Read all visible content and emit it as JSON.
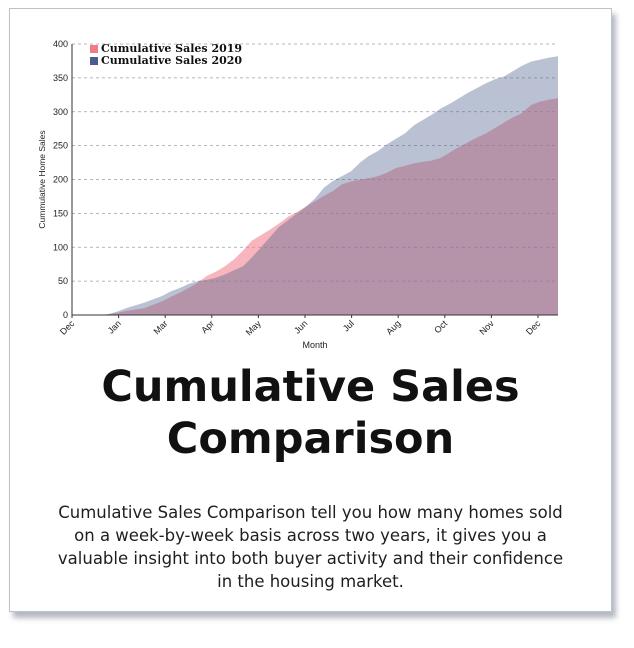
{
  "card": {
    "heading": "Cumulative Sales Comparison",
    "description": "Cumulative Sales Comparison tell you how many homes sold on a week-by-week basis across two years, it gives you a valuable insight into both buyer activity and their confidence in the housing market."
  },
  "chart_data": {
    "type": "area",
    "xlabel": "Month",
    "ylabel": "Cummulative Home Sales",
    "ylim": [
      0,
      400
    ],
    "yticks": [
      0,
      50,
      100,
      150,
      200,
      250,
      300,
      350,
      400
    ],
    "xticks": [
      "Dec",
      "Jan",
      "Mar",
      "Apr",
      "May",
      "Jun",
      "Jul",
      "Aug",
      "Oct",
      "Nov",
      "Dec"
    ],
    "grid": true,
    "legend_position": "top-left",
    "x": [
      0,
      1,
      2,
      3,
      4,
      5,
      6,
      7,
      8,
      9,
      10,
      11,
      12,
      13,
      14,
      15,
      16,
      17,
      18,
      19,
      20,
      21,
      22,
      23,
      24,
      25,
      26,
      27,
      28,
      29,
      30,
      31,
      32,
      33,
      34,
      35,
      36,
      37,
      38,
      39,
      40,
      41,
      42,
      43,
      44,
      45,
      46,
      47,
      48,
      49,
      50,
      51,
      52,
      53,
      54
    ],
    "series": [
      {
        "name": "Cumulative Sales 2019",
        "color": "#f07a86",
        "values": [
          0,
          0,
          0,
          0,
          1,
          3,
          6,
          8,
          10,
          15,
          20,
          27,
          33,
          40,
          48,
          58,
          64,
          72,
          82,
          95,
          110,
          118,
          126,
          135,
          145,
          152,
          160,
          168,
          176,
          183,
          193,
          197,
          200,
          202,
          205,
          210,
          217,
          220,
          224,
          226,
          228,
          232,
          240,
          248,
          255,
          262,
          268,
          276,
          284,
          292,
          298,
          310,
          315,
          318,
          320
        ]
      },
      {
        "name": "Cumulative Sales 2020",
        "color": "#4a5d8c",
        "values": [
          0,
          0,
          0,
          0,
          1,
          5,
          10,
          14,
          18,
          23,
          28,
          35,
          40,
          46,
          50,
          52,
          55,
          60,
          66,
          72,
          85,
          100,
          115,
          130,
          140,
          150,
          160,
          172,
          188,
          198,
          205,
          212,
          225,
          235,
          242,
          252,
          260,
          268,
          280,
          288,
          296,
          305,
          312,
          320,
          328,
          335,
          342,
          348,
          352,
          360,
          368,
          374,
          377,
          380,
          382
        ]
      }
    ]
  }
}
